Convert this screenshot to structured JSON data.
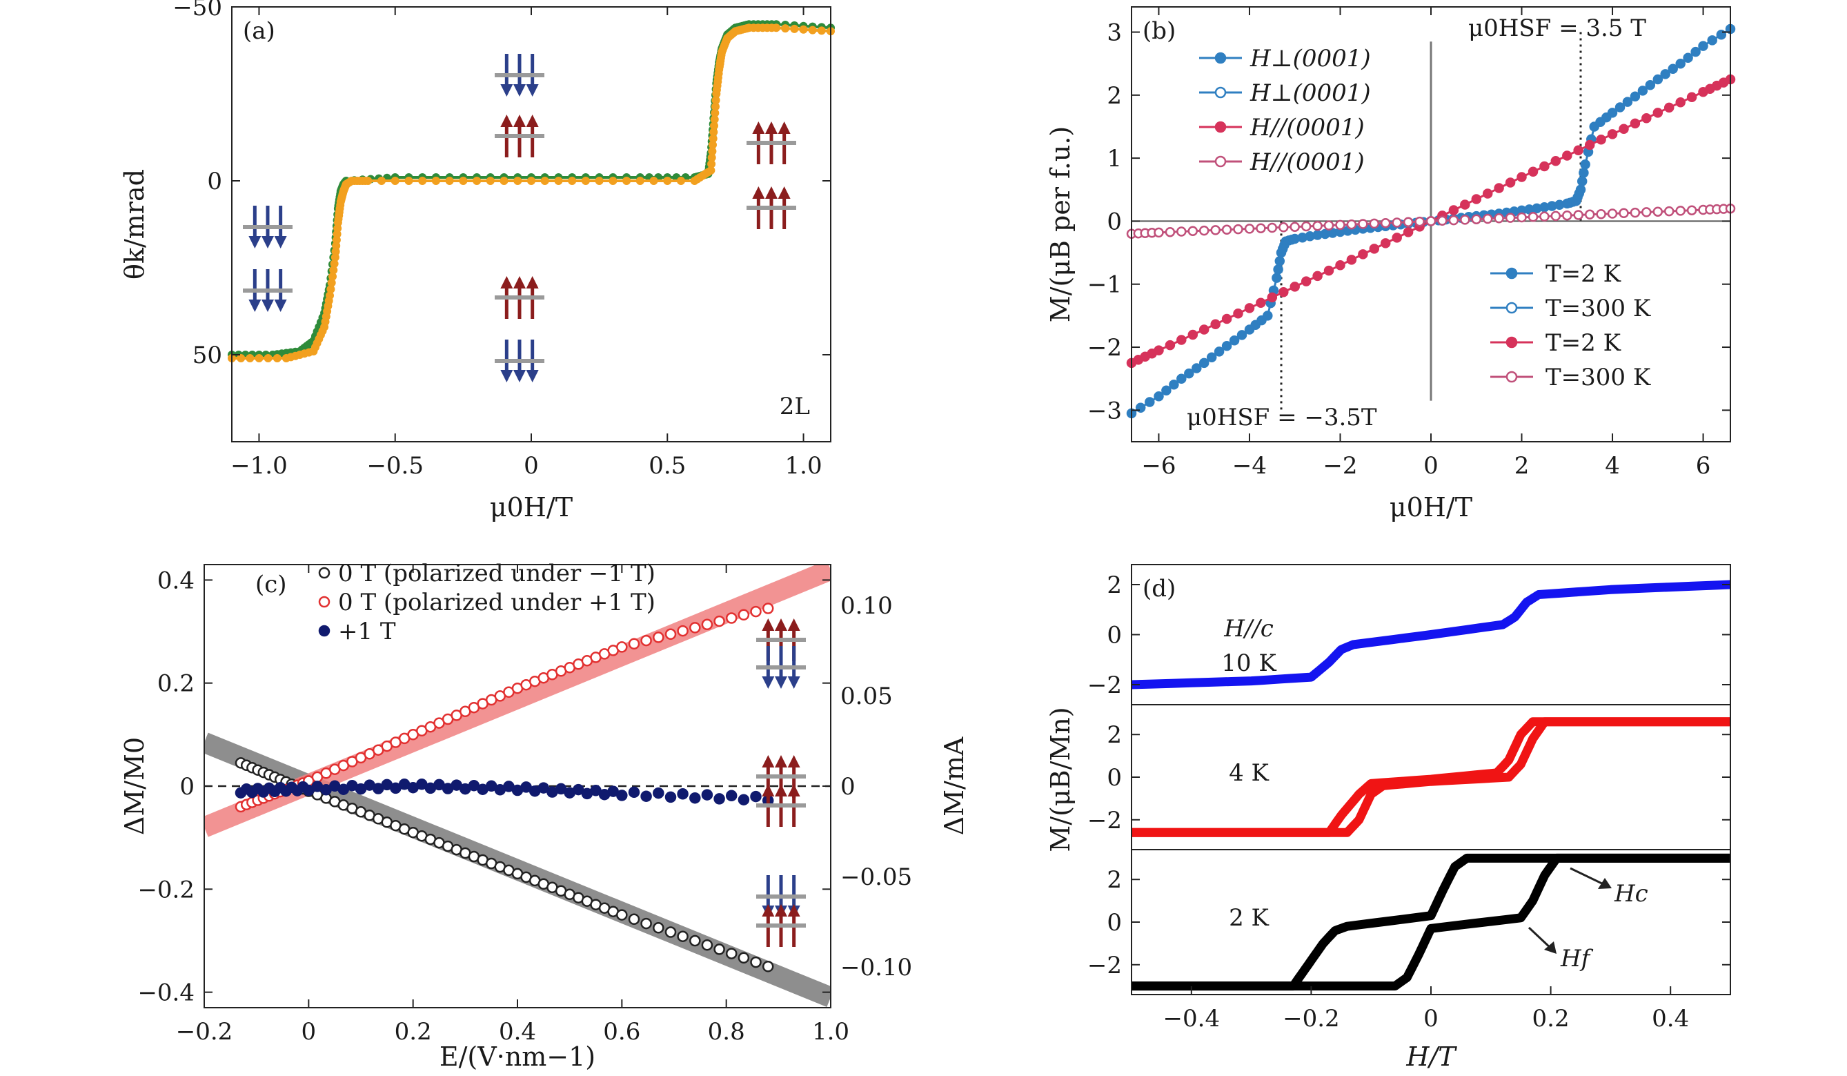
{
  "chart_data": [
    {
      "panel": "a",
      "type": "line",
      "panel_label": "(a)",
      "xlabel": "μ0H/T",
      "ylabel": "θk/mrad",
      "xlim": [
        -1.1,
        1.1
      ],
      "ylim": [
        75,
        -50
      ],
      "y_inverted": true,
      "xticks": [
        -1.0,
        -0.5,
        0,
        0.5,
        1.0
      ],
      "xtick_labels": [
        "−1.0",
        "−0.5",
        "0",
        "0.5",
        "1.0"
      ],
      "yticks": [
        -50,
        0,
        50
      ],
      "ytick_labels": [
        "−50",
        "0",
        "50"
      ],
      "annotations": [
        "2L"
      ],
      "colors": {
        "series_green": "#2e8b3a",
        "series_orange": "#f2a01f",
        "spin_down": "#2b3f8a",
        "spin_up": "#8b1d1d",
        "layer": "#9a9a9a"
      },
      "series": [
        {
          "color": "#2e8b3a",
          "x": [
            -1.1,
            -0.95,
            -0.85,
            -0.8,
            -0.76,
            -0.74,
            -0.72,
            -0.71,
            -0.7,
            -0.69,
            -0.68,
            -0.5,
            -0.2,
            0.1,
            0.4,
            0.6,
            0.65,
            0.66,
            0.67,
            0.68,
            0.69,
            0.7,
            0.72,
            0.75,
            0.8,
            0.9,
            1.1
          ],
          "y": [
            50,
            50,
            49,
            46,
            38,
            30,
            18,
            8,
            3,
            1,
            0,
            -1,
            -1,
            -1,
            -1,
            -1,
            -2,
            -8,
            -18,
            -28,
            -34,
            -38,
            -42,
            -44,
            -45,
            -45,
            -44
          ]
        },
        {
          "color": "#f2a01f",
          "x": [
            -1.1,
            -0.9,
            -0.8,
            -0.76,
            -0.74,
            -0.72,
            -0.71,
            -0.7,
            -0.69,
            -0.68,
            -0.66,
            -0.6,
            -0.3,
            0,
            0.3,
            0.6,
            0.66,
            0.67,
            0.68,
            0.69,
            0.7,
            0.72,
            0.75,
            0.8,
            0.9,
            1.1
          ],
          "y": [
            51,
            51,
            49,
            42,
            33,
            22,
            12,
            6,
            3,
            1,
            0,
            0,
            0,
            0,
            0,
            0,
            -3,
            -14,
            -25,
            -32,
            -37,
            -41,
            -43,
            -44,
            -44,
            -43
          ]
        }
      ]
    },
    {
      "panel": "b",
      "type": "scatter",
      "panel_label": "(b)",
      "xlabel": "μ0H/T",
      "ylabel": "M/(μB per f.u.)",
      "xlim": [
        -6.6,
        6.6
      ],
      "ylim": [
        -3.5,
        3.4
      ],
      "xticks": [
        -6,
        -4,
        -2,
        0,
        2,
        4,
        6
      ],
      "xtick_labels": [
        "−6",
        "−4",
        "−2",
        "0",
        "2",
        "4",
        "6"
      ],
      "yticks": [
        -3,
        -2,
        -1,
        0,
        1,
        2,
        3
      ],
      "ytick_labels": [
        "−3",
        "−2",
        "−1",
        "0",
        "1",
        "2",
        "3"
      ],
      "legend_left": [
        "H⊥(0001)",
        "H⊥(0001)",
        "H//(0001)",
        "H//(0001)"
      ],
      "legend_right": [
        "T=2 K",
        "T=300 K",
        "T=2 K",
        "T=300 K"
      ],
      "annotations": [
        "μ0HSF = 3.5 T",
        "μ0HSF = −3.5T"
      ],
      "colors": {
        "blue": "#2f7fc1",
        "red": "#d6325a",
        "pink": "#c0507a"
      },
      "series": [
        {
          "color": "#2f7fc1",
          "filled": true,
          "x": [
            -6.6,
            -6.0,
            -5.5,
            -5.0,
            -4.5,
            -4.0,
            -3.6,
            -3.4,
            -3.3,
            -3.2,
            -3.0,
            -2.5,
            -2.0,
            -1.5,
            -1.0,
            -0.5,
            0,
            0.5,
            1.0,
            1.5,
            2.0,
            2.5,
            3.0,
            3.2,
            3.3,
            3.4,
            3.6,
            4.0,
            4.5,
            5.0,
            5.5,
            6.0,
            6.6
          ],
          "y": [
            -3.05,
            -2.78,
            -2.5,
            -2.25,
            -1.98,
            -1.72,
            -1.5,
            -0.9,
            -0.5,
            -0.32,
            -0.28,
            -0.22,
            -0.17,
            -0.12,
            -0.08,
            -0.04,
            0,
            0.04,
            0.08,
            0.12,
            0.17,
            0.22,
            0.28,
            0.32,
            0.5,
            0.9,
            1.5,
            1.72,
            1.98,
            2.25,
            2.5,
            2.78,
            3.05
          ]
        },
        {
          "color": "#d6325a",
          "filled": true,
          "x": [
            -6.6,
            -6.0,
            -5.0,
            -4.0,
            -3.0,
            -2.0,
            -1.0,
            0,
            1.0,
            2.0,
            3.0,
            4.0,
            5.0,
            6.0,
            6.6
          ],
          "y": [
            -2.25,
            -2.05,
            -1.72,
            -1.38,
            -1.04,
            -0.7,
            -0.35,
            0,
            0.35,
            0.7,
            1.04,
            1.38,
            1.72,
            2.05,
            2.25
          ]
        },
        {
          "color": "#c0507a",
          "filled": false,
          "x": [
            -6.6,
            -6.0,
            -5.0,
            -4.0,
            -3.0,
            -2.0,
            -1.0,
            0,
            1.0,
            2.0,
            3.0,
            4.0,
            5.0,
            6.0,
            6.6
          ],
          "y": [
            -0.2,
            -0.18,
            -0.15,
            -0.12,
            -0.09,
            -0.06,
            -0.03,
            0,
            0.03,
            0.06,
            0.09,
            0.12,
            0.15,
            0.18,
            0.2
          ]
        }
      ]
    },
    {
      "panel": "c",
      "type": "scatter",
      "panel_label": "(c)",
      "xlabel": "E/(V·nm−1)",
      "ylabel": "ΔM/M0",
      "ylabel_right": "ΔM/mA",
      "xlim": [
        -0.2,
        1.0
      ],
      "ylim": [
        -0.43,
        0.43
      ],
      "xticks": [
        -0.2,
        0,
        0.2,
        0.4,
        0.6,
        0.8,
        1.0
      ],
      "xtick_labels": [
        "−0.2",
        "0",
        "0.2",
        "0.4",
        "0.6",
        "0.8",
        "1.0"
      ],
      "yticks": [
        -0.4,
        -0.2,
        0,
        0.2,
        0.4
      ],
      "ytick_labels": [
        "−0.4",
        "−0.2",
        "0",
        "0.2",
        "0.4"
      ],
      "y2ticks": [
        -0.1,
        -0.05,
        0,
        0.05,
        0.1
      ],
      "y2tick_labels": [
        "−0.10",
        "−0.05",
        "0",
        "0.05",
        "0.10"
      ],
      "y2lim": [
        -0.1225,
        0.1225
      ],
      "legend": [
        "0 T (polarized under −1 T)",
        "0 T (polarized under +1 T)",
        "+1 T"
      ],
      "colors": {
        "black": "#222222",
        "red": "#e23030",
        "navy": "#101a6e",
        "fit_gray": "#7a7a7a",
        "fit_red": "#f08080"
      },
      "series": [
        {
          "color": "#222222",
          "x": [
            -0.13,
            0.0,
            0.2,
            0.4,
            0.6,
            0.88
          ],
          "y": [
            0.045,
            -0.01,
            -0.09,
            -0.17,
            -0.25,
            -0.35
          ]
        },
        {
          "color": "#e23030",
          "x": [
            -0.13,
            0.0,
            0.2,
            0.4,
            0.6,
            0.88
          ],
          "y": [
            -0.04,
            0.01,
            0.1,
            0.19,
            0.27,
            0.345
          ]
        },
        {
          "color": "#101a6e",
          "x": [
            -0.13,
            0.0,
            0.2,
            0.4,
            0.6,
            0.88
          ],
          "y": [
            -0.01,
            -0.005,
            0.0,
            -0.005,
            -0.015,
            -0.025
          ]
        }
      ],
      "fits": [
        {
          "color": "#7a7a7a",
          "x": [
            -0.2,
            1.0
          ],
          "y": [
            0.085,
            -0.41
          ]
        },
        {
          "color": "#f08080",
          "x": [
            -0.2,
            1.0
          ],
          "y": [
            -0.08,
            0.42
          ]
        }
      ]
    },
    {
      "panel": "d",
      "type": "line",
      "panel_label": "(d)",
      "xlabel": "H/T",
      "ylabel": "M/(μB/Mn)",
      "xlim": [
        -0.5,
        0.5
      ],
      "xticks": [
        -0.4,
        -0.2,
        0,
        0.2,
        0.4
      ],
      "xtick_labels": [
        "−0.4",
        "−0.2",
        "0",
        "0.2",
        "0.4"
      ],
      "colors": {
        "blue": "#1414f0",
        "red": "#f01414",
        "black": "#000000"
      },
      "subpanels": [
        {
          "label_lines": [
            "H//c",
            "10 K"
          ],
          "color": "#1414f0",
          "ylim": [
            -2.8,
            2.8
          ],
          "yticks": [
            -2,
            0,
            2
          ],
          "ytick_labels": [
            "−2",
            "0",
            "2"
          ],
          "branches": [
            {
              "x": [
                -0.5,
                -0.3,
                -0.2,
                -0.17,
                -0.15,
                -0.13,
                0.0,
                0.12,
                0.14,
                0.16,
                0.18,
                0.3,
                0.5
              ],
              "y": [
                -2.0,
                -1.85,
                -1.7,
                -1.1,
                -0.6,
                -0.4,
                0.0,
                0.4,
                0.7,
                1.3,
                1.6,
                1.8,
                2.0
              ]
            }
          ]
        },
        {
          "label_lines": [
            "4 K"
          ],
          "color": "#f01414",
          "ylim": [
            -3.4,
            3.4
          ],
          "yticks": [
            -2,
            0,
            2
          ],
          "ytick_labels": [
            "−2",
            "0",
            "2"
          ],
          "branches": [
            {
              "x": [
                -0.5,
                -0.17,
                -0.15,
                -0.12,
                -0.1,
                0.0,
                0.11,
                0.13,
                0.15,
                0.17,
                0.5
              ],
              "y": [
                -2.6,
                -2.6,
                -1.8,
                -0.8,
                -0.3,
                -0.1,
                0.2,
                0.8,
                2.0,
                2.6,
                2.6
              ]
            },
            {
              "x": [
                -0.5,
                -0.14,
                -0.12,
                -0.1,
                -0.08,
                0.0,
                0.13,
                0.15,
                0.17,
                0.19,
                0.5
              ],
              "y": [
                -2.6,
                -2.6,
                -2.0,
                -0.8,
                -0.4,
                -0.2,
                0.0,
                0.6,
                1.8,
                2.6,
                2.6
              ]
            }
          ]
        },
        {
          "label_lines": [
            "2 K"
          ],
          "color": "#000000",
          "ylim": [
            -3.4,
            3.4
          ],
          "yticks": [
            -2,
            0,
            2
          ],
          "ytick_labels": [
            "−2",
            "0",
            "2"
          ],
          "annotations": [
            "Hc",
            "Hf"
          ],
          "branches": [
            {
              "x": [
                -0.5,
                -0.23,
                -0.21,
                -0.18,
                -0.16,
                -0.14,
                0.0,
                0.02,
                0.04,
                0.06,
                0.5
              ],
              "y": [
                -3.0,
                -3.0,
                -2.2,
                -1.0,
                -0.4,
                -0.2,
                0.3,
                1.5,
                2.6,
                3.0,
                3.0
              ]
            },
            {
              "x": [
                -0.5,
                -0.06,
                -0.04,
                -0.02,
                0.0,
                0.15,
                0.17,
                0.19,
                0.21,
                0.23,
                0.5
              ],
              "y": [
                -3.0,
                -3.0,
                -2.6,
                -1.5,
                -0.3,
                0.2,
                1.0,
                2.2,
                3.0,
                3.0,
                3.0
              ]
            }
          ]
        }
      ]
    }
  ]
}
